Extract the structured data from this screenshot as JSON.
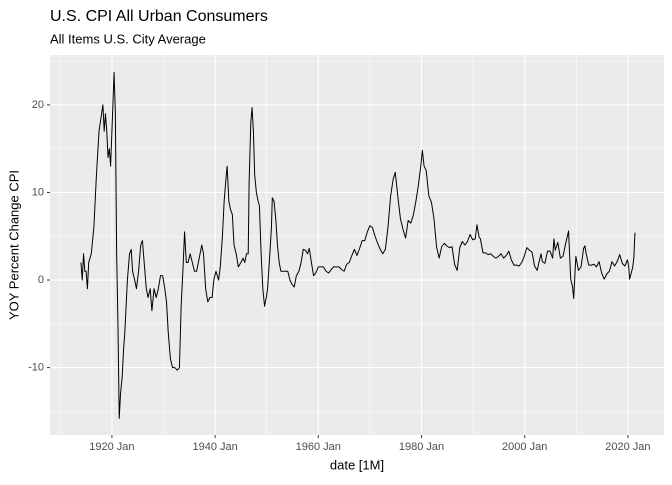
{
  "chart_data": {
    "type": "line",
    "title": "U.S. CPI All Urban Consumers",
    "subtitle": "All Items U.S. City Average",
    "x_label": "date [1M]",
    "y_label": "YOY Percent Change CPI",
    "color": "#000000",
    "grid": true,
    "xlim": [
      "1908-01",
      "2027-01"
    ],
    "ylim": [
      -17.7,
      25.7
    ],
    "xticks": [
      {
        "value": "1920-01",
        "label": "1920 Jan"
      },
      {
        "value": "1940-01",
        "label": "1940 Jan"
      },
      {
        "value": "1960-01",
        "label": "1960 Jan"
      },
      {
        "value": "1980-01",
        "label": "1980 Jan"
      },
      {
        "value": "2000-01",
        "label": "2000 Jan"
      },
      {
        "value": "2020-01",
        "label": "2020 Jan"
      }
    ],
    "yticks": [
      -10,
      0,
      10,
      20
    ],
    "x": [
      "1914-01",
      "1914-04",
      "1914-07",
      "1914-10",
      "1915-01",
      "1915-04",
      "1915-07",
      "1916-01",
      "1916-07",
      "1917-01",
      "1917-07",
      "1918-01",
      "1918-04",
      "1918-07",
      "1918-10",
      "1919-01",
      "1919-04",
      "1919-07",
      "1919-10",
      "1920-01",
      "1920-06",
      "1920-09",
      "1920-12",
      "1921-03",
      "1921-06",
      "1921-09",
      "1922-01",
      "1922-04",
      "1922-07",
      "1923-01",
      "1923-06",
      "1923-10",
      "1924-01",
      "1924-06",
      "1924-10",
      "1925-03",
      "1925-08",
      "1925-12",
      "1926-04",
      "1926-09",
      "1927-01",
      "1927-06",
      "1927-10",
      "1928-03",
      "1928-08",
      "1929-01",
      "1929-06",
      "1929-11",
      "1930-04",
      "1930-08",
      "1930-12",
      "1931-05",
      "1931-10",
      "1932-03",
      "1932-09",
      "1933-02",
      "1933-06",
      "1933-10",
      "1934-02",
      "1934-06",
      "1934-10",
      "1935-03",
      "1935-08",
      "1936-01",
      "1936-06",
      "1937-02",
      "1937-06",
      "1937-10",
      "1938-03",
      "1938-08",
      "1939-01",
      "1939-06",
      "1939-10",
      "1940-03",
      "1940-09",
      "1941-01",
      "1941-06",
      "1941-10",
      "1942-03",
      "1942-05",
      "1942-09",
      "1943-01",
      "1943-05",
      "1943-09",
      "1944-02",
      "1944-07",
      "1945-01",
      "1945-06",
      "1945-10",
      "1946-02",
      "1946-06",
      "1946-08",
      "1946-12",
      "1947-03",
      "1947-06",
      "1947-09",
      "1948-01",
      "1948-05",
      "1948-08",
      "1948-12",
      "1949-04",
      "1949-08",
      "1949-12",
      "1950-03",
      "1950-07",
      "1950-12",
      "1951-02",
      "1951-06",
      "1951-10",
      "1952-02",
      "1952-06",
      "1952-10",
      "1953-04",
      "1953-09",
      "1954-02",
      "1954-07",
      "1954-12",
      "1955-05",
      "1955-10",
      "1956-04",
      "1956-09",
      "1957-02",
      "1957-07",
      "1957-12",
      "1958-04",
      "1958-09",
      "1959-02",
      "1959-07",
      "1960-01",
      "1960-07",
      "1961-01",
      "1961-07",
      "1962-01",
      "1962-07",
      "1963-01",
      "1963-07",
      "1964-01",
      "1964-07",
      "1965-01",
      "1965-07",
      "1966-01",
      "1966-07",
      "1967-01",
      "1967-07",
      "1968-01",
      "1968-07",
      "1969-01",
      "1969-07",
      "1970-01",
      "1970-07",
      "1971-01",
      "1971-07",
      "1972-01",
      "1972-07",
      "1973-01",
      "1973-07",
      "1974-01",
      "1974-07",
      "1974-12",
      "1975-06",
      "1975-12",
      "1976-06",
      "1976-12",
      "1977-06",
      "1977-12",
      "1978-06",
      "1978-12",
      "1979-06",
      "1979-12",
      "1980-03",
      "1980-07",
      "1980-12",
      "1981-06",
      "1981-12",
      "1982-06",
      "1982-12",
      "1983-06",
      "1983-12",
      "1984-06",
      "1984-12",
      "1985-06",
      "1985-12",
      "1986-06",
      "1986-12",
      "1987-06",
      "1987-12",
      "1988-06",
      "1988-12",
      "1989-06",
      "1989-12",
      "1990-06",
      "1990-10",
      "1991-03",
      "1991-06",
      "1991-12",
      "1992-06",
      "1992-12",
      "1993-06",
      "1993-12",
      "1994-06",
      "1994-12",
      "1995-06",
      "1995-12",
      "1996-06",
      "1996-12",
      "1997-06",
      "1997-12",
      "1998-06",
      "1998-12",
      "1999-06",
      "1999-12",
      "2000-06",
      "2000-12",
      "2001-06",
      "2001-12",
      "2002-06",
      "2002-12",
      "2003-03",
      "2003-06",
      "2003-12",
      "2004-06",
      "2004-12",
      "2005-06",
      "2005-09",
      "2005-12",
      "2006-06",
      "2006-12",
      "2007-06",
      "2007-12",
      "2008-07",
      "2008-12",
      "2009-04",
      "2009-07",
      "2009-12",
      "2010-06",
      "2010-12",
      "2011-06",
      "2011-09",
      "2011-12",
      "2012-06",
      "2012-12",
      "2013-06",
      "2013-12",
      "2014-06",
      "2014-12",
      "2015-06",
      "2015-12",
      "2016-06",
      "2016-12",
      "2017-06",
      "2017-12",
      "2018-06",
      "2018-12",
      "2019-06",
      "2019-12",
      "2020-03",
      "2020-05",
      "2020-12",
      "2021-03",
      "2021-05",
      "2021-06"
    ],
    "values": [
      2,
      0,
      3,
      1,
      1,
      -1,
      2,
      3,
      6,
      12,
      17,
      19,
      20,
      17,
      19,
      17,
      14,
      15,
      13,
      17,
      23.7,
      19,
      3,
      -5,
      -15.8,
      -13,
      -11,
      -8,
      -6,
      0,
      3,
      3.5,
      1,
      0,
      -1,
      1,
      4,
      4.5,
      2,
      -1,
      -2,
      -1,
      -3.5,
      -1,
      -2,
      -1,
      0.5,
      0.5,
      -1,
      -2.5,
      -6,
      -9,
      -10,
      -10,
      -10.3,
      -10,
      -3,
      1,
      5.5,
      2,
      2,
      3,
      2,
      1,
      1,
      3,
      4,
      3,
      -1,
      -2.5,
      -2,
      -2,
      0,
      1,
      0,
      1.5,
      5,
      9,
      12,
      13,
      9,
      8,
      7.5,
      4,
      3,
      1.5,
      2,
      2.5,
      2,
      3,
      3,
      11,
      18,
      19.7,
      17,
      12,
      10,
      9,
      8.5,
      3,
      -1,
      -3,
      -2,
      -1,
      2,
      6,
      9.4,
      9,
      7,
      4,
      2,
      1,
      1,
      1,
      1,
      0,
      -0.5,
      -0.8,
      0.5,
      1,
      2,
      3.5,
      3.4,
      3,
      3.6,
      2,
      0.5,
      0.8,
      1.5,
      1.5,
      1.5,
      1,
      0.8,
      1.2,
      1.5,
      1.5,
      1.5,
      1.2,
      1,
      1.8,
      2,
      2.8,
      3.5,
      2.8,
      3.6,
      4.5,
      4.5,
      5.5,
      6.2,
      6,
      5,
      4.2,
      3.5,
      3,
      3.5,
      6,
      9.5,
      11.5,
      12.3,
      9.5,
      7,
      5.8,
      4.8,
      6.8,
      6.5,
      7.4,
      9,
      10.9,
      13.3,
      14.8,
      13,
      12.5,
      9.6,
      8.9,
      7,
      3.8,
      2.5,
      3.8,
      4.2,
      3.9,
      3.7,
      3.8,
      1.8,
      1.1,
      3.7,
      4.4,
      4,
      4.4,
      5.2,
      4.6,
      4.7,
      6.3,
      4.9,
      4.7,
      3.1,
      3.1,
      2.9,
      3,
      2.7,
      2.5,
      2.7,
      3,
      2.5,
      2.8,
      3.3,
      2.3,
      1.7,
      1.7,
      1.6,
      2,
      2.7,
      3.7,
      3.4,
      3.2,
      1.6,
      1.1,
      2.4,
      3,
      2.1,
      1.9,
      3.3,
      3.3,
      2.5,
      4.7,
      3.4,
      4.3,
      2.5,
      2.7,
      4.1,
      5.6,
      0.1,
      -0.7,
      -2.1,
      2.7,
      1.1,
      1.5,
      3.6,
      3.9,
      3,
      1.7,
      1.7,
      1.8,
      1.5,
      2.1,
      0.8,
      0.1,
      0.7,
      1,
      2.1,
      1.6,
      2.1,
      2.9,
      1.9,
      1.6,
      2.3,
      1.5,
      0.1,
      1.4,
      2.6,
      5,
      5.4
    ]
  }
}
